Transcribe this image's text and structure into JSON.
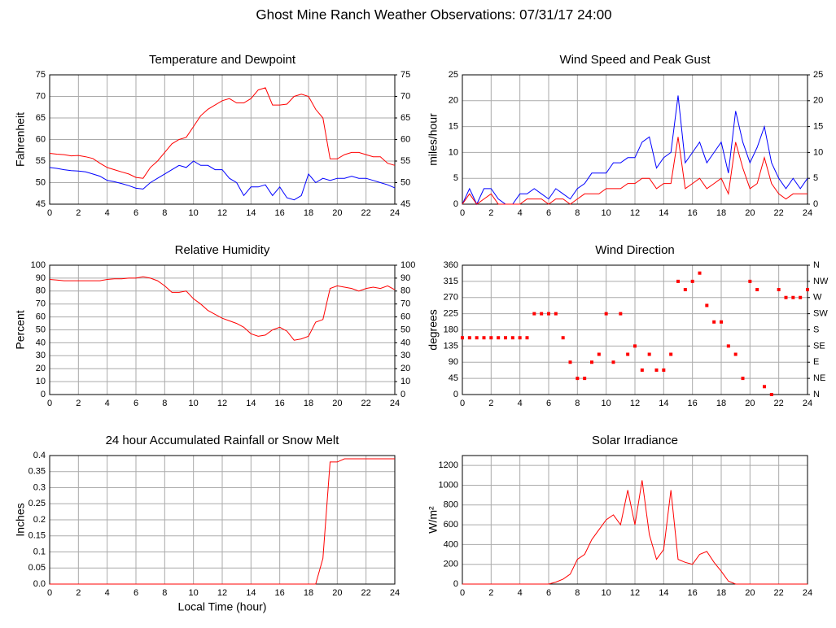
{
  "title": "Ghost Mine Ranch Weather Observations: 07/31/17 24:00",
  "chart_data": [
    {
      "type": "line",
      "title": "Temperature and Dewpoint",
      "ylabel": "Fahrenheit",
      "x": [
        0,
        0.5,
        1,
        1.5,
        2,
        2.5,
        3,
        3.5,
        4,
        4.5,
        5,
        5.5,
        6,
        6.5,
        7,
        7.5,
        8,
        8.5,
        9,
        9.5,
        10,
        10.5,
        11,
        11.5,
        12,
        12.5,
        13,
        13.5,
        14,
        14.5,
        15,
        15.5,
        16,
        16.5,
        17,
        17.5,
        18,
        18.5,
        19,
        19.5,
        20,
        20.5,
        21,
        21.5,
        22,
        22.5,
        23,
        23.5,
        24
      ],
      "series": [
        {
          "color": "#ff0000",
          "values": [
            56.8,
            56.6,
            56.5,
            56.2,
            56.3,
            56,
            55.6,
            54.5,
            53.5,
            53,
            52.5,
            52,
            51.2,
            51,
            53.5,
            55,
            57,
            59,
            60,
            60.5,
            63,
            65.5,
            67,
            68,
            69,
            69.5,
            68.5,
            68.5,
            69.5,
            71.5,
            72,
            68,
            68,
            68.2,
            70,
            70.5,
            70,
            67,
            65,
            55.5,
            55.5,
            56.5,
            57,
            57,
            56.5,
            56,
            56,
            54.5,
            54
          ]
        },
        {
          "color": "#0000ff",
          "values": [
            53.5,
            53.3,
            53,
            52.8,
            52.7,
            52.5,
            52,
            51.5,
            50.5,
            50.2,
            49.8,
            49.3,
            48.7,
            48.5,
            50,
            51,
            52,
            53,
            54,
            53.5,
            55,
            54,
            54,
            53,
            53,
            51,
            50,
            47,
            49,
            49,
            49.5,
            47,
            49,
            46.5,
            46,
            47,
            52,
            50,
            51,
            50.5,
            51,
            51,
            51.5,
            51,
            51,
            50.5,
            50,
            49.5,
            48.8
          ]
        }
      ],
      "xlim": [
        0,
        24
      ],
      "xticks": [
        0,
        2,
        4,
        6,
        8,
        10,
        12,
        14,
        16,
        18,
        20,
        22,
        24
      ],
      "ylim": [
        45,
        75
      ],
      "yticks": [
        45,
        50,
        55,
        60,
        65,
        70,
        75
      ],
      "y2lim": [
        45,
        75
      ],
      "y2ticks": [
        45,
        50,
        55,
        60,
        65,
        70,
        75
      ],
      "grid": true
    },
    {
      "type": "line",
      "title": "Wind Speed and Peak Gust",
      "ylabel": "miles/hour",
      "x": [
        0,
        0.5,
        1,
        1.5,
        2,
        2.5,
        3,
        3.5,
        4,
        4.5,
        5,
        5.5,
        6,
        6.5,
        7,
        7.5,
        8,
        8.5,
        9,
        9.5,
        10,
        10.5,
        11,
        11.5,
        12,
        12.5,
        13,
        13.5,
        14,
        14.5,
        15,
        15.5,
        16,
        16.5,
        17,
        17.5,
        18,
        18.5,
        19,
        19.5,
        20,
        20.5,
        21,
        21.5,
        22,
        22.5,
        23,
        23.5,
        24
      ],
      "series": [
        {
          "color": "#0000ff",
          "values": [
            0,
            3,
            0,
            3,
            3,
            1,
            0,
            0,
            2,
            2,
            3,
            2,
            1,
            3,
            2,
            1,
            3,
            4,
            6,
            6,
            6,
            8,
            8,
            9,
            9,
            12,
            13,
            7,
            9,
            10,
            21,
            8,
            10,
            12,
            8,
            10,
            12,
            6,
            18,
            12,
            8,
            11,
            15,
            8,
            5,
            3,
            5,
            3,
            5
          ]
        },
        {
          "color": "#ff0000",
          "values": [
            0,
            2,
            0,
            1,
            2,
            0,
            0,
            0,
            0,
            1,
            1,
            1,
            0,
            1,
            1,
            0,
            1,
            2,
            2,
            2,
            3,
            3,
            3,
            4,
            4,
            5,
            5,
            3,
            4,
            4,
            13,
            3,
            4,
            5,
            3,
            4,
            5,
            2,
            12,
            7,
            3,
            4,
            9,
            4,
            2,
            1,
            2,
            2,
            2
          ]
        }
      ],
      "xlim": [
        0,
        24
      ],
      "xticks": [
        0,
        2,
        4,
        6,
        8,
        10,
        12,
        14,
        16,
        18,
        20,
        22,
        24
      ],
      "ylim": [
        0,
        25
      ],
      "yticks": [
        0,
        5,
        10,
        15,
        20,
        25
      ],
      "y2lim": [
        0,
        25
      ],
      "y2ticks": [
        0,
        5,
        10,
        15,
        20,
        25
      ],
      "grid": true
    },
    {
      "type": "line",
      "title": "Relative Humidity",
      "ylabel": "Percent",
      "x": [
        0,
        0.5,
        1,
        1.5,
        2,
        2.5,
        3,
        3.5,
        4,
        4.5,
        5,
        5.5,
        6,
        6.5,
        7,
        7.5,
        8,
        8.5,
        9,
        9.5,
        10,
        10.5,
        11,
        11.5,
        12,
        12.5,
        13,
        13.5,
        14,
        14.5,
        15,
        15.5,
        16,
        16.5,
        17,
        17.5,
        18,
        18.5,
        19,
        19.5,
        20,
        20.5,
        21,
        21.5,
        22,
        22.5,
        23,
        23.5,
        24
      ],
      "series": [
        {
          "color": "#ff0000",
          "values": [
            89,
            88.5,
            88,
            88,
            88,
            88,
            88,
            88,
            89,
            89.5,
            89.5,
            90,
            90,
            91,
            90,
            88,
            84,
            79,
            79,
            80,
            74,
            70,
            65,
            62,
            59,
            57,
            55,
            52,
            47,
            45,
            46,
            50,
            52,
            49,
            42,
            43,
            45,
            56,
            58,
            82,
            84,
            83,
            82,
            80,
            82,
            83,
            82,
            84,
            81
          ]
        }
      ],
      "xlim": [
        0,
        24
      ],
      "xticks": [
        0,
        2,
        4,
        6,
        8,
        10,
        12,
        14,
        16,
        18,
        20,
        22,
        24
      ],
      "ylim": [
        0,
        100
      ],
      "yticks": [
        0,
        10,
        20,
        30,
        40,
        50,
        60,
        70,
        80,
        90,
        100
      ],
      "y2lim": [
        0,
        100
      ],
      "y2ticks": [
        0,
        10,
        20,
        30,
        40,
        50,
        60,
        70,
        80,
        90,
        100
      ],
      "grid": true
    },
    {
      "type": "scatter",
      "title": "Wind Direction",
      "ylabel": "degrees",
      "x": [
        0,
        0.5,
        1,
        1.5,
        2,
        2.5,
        3,
        3.5,
        4,
        4.5,
        5,
        5.5,
        6,
        6.5,
        7,
        7.5,
        8,
        8.5,
        9,
        9.5,
        10,
        10.5,
        11,
        11.5,
        12,
        12.5,
        13,
        13.5,
        14,
        14.5,
        15,
        15.5,
        16,
        16.5,
        17,
        17.5,
        18,
        18.5,
        19,
        19.5,
        20,
        20.5,
        21,
        21.5,
        22,
        22.5,
        23,
        23.5,
        24
      ],
      "series": [
        {
          "color": "#ff0000",
          "values": [
            158,
            158,
            158,
            158,
            158,
            158,
            158,
            158,
            158,
            158,
            225,
            225,
            225,
            225,
            158,
            90,
            45,
            45,
            90,
            112,
            225,
            90,
            225,
            112,
            135,
            68,
            112,
            68,
            68,
            112,
            315,
            292,
            315,
            338,
            248,
            202,
            202,
            135,
            112,
            45,
            315,
            292,
            22,
            0,
            292,
            270,
            270,
            270,
            292
          ]
        }
      ],
      "xlim": [
        0,
        24
      ],
      "xticks": [
        0,
        2,
        4,
        6,
        8,
        10,
        12,
        14,
        16,
        18,
        20,
        22,
        24
      ],
      "ylim": [
        0,
        360
      ],
      "yticks": [
        0,
        45,
        90,
        135,
        180,
        225,
        270,
        315,
        360
      ],
      "y2lim": [
        0,
        360
      ],
      "y2ticks": [
        {
          "value": 0,
          "label": "N"
        },
        {
          "value": 45,
          "label": "NE"
        },
        {
          "value": 90,
          "label": "E"
        },
        {
          "value": 135,
          "label": "SE"
        },
        {
          "value": 180,
          "label": "S"
        },
        {
          "value": 225,
          "label": "SW"
        },
        {
          "value": 270,
          "label": "W"
        },
        {
          "value": 315,
          "label": "NW"
        },
        {
          "value": 360,
          "label": "N"
        }
      ],
      "grid": true
    },
    {
      "type": "line",
      "title": "24 hour Accumulated Rainfall or Snow Melt",
      "ylabel": "Inches",
      "xlabel": "Local Time (hour)",
      "x": [
        0,
        0.5,
        1,
        1.5,
        2,
        2.5,
        3,
        3.5,
        4,
        4.5,
        5,
        5.5,
        6,
        6.5,
        7,
        7.5,
        8,
        8.5,
        9,
        9.5,
        10,
        10.5,
        11,
        11.5,
        12,
        12.5,
        13,
        13.5,
        14,
        14.5,
        15,
        15.5,
        16,
        16.5,
        17,
        17.5,
        18,
        18.5,
        19,
        19.5,
        20,
        20.5,
        21,
        21.5,
        22,
        22.5,
        23,
        23.5,
        24
      ],
      "series": [
        {
          "color": "#ff0000",
          "values": [
            0,
            0,
            0,
            0,
            0,
            0,
            0,
            0,
            0,
            0,
            0,
            0,
            0,
            0,
            0,
            0,
            0,
            0,
            0,
            0,
            0,
            0,
            0,
            0,
            0,
            0,
            0,
            0,
            0,
            0,
            0,
            0,
            0,
            0,
            0,
            0,
            0,
            0,
            0.08,
            0.38,
            0.38,
            0.39,
            0.39,
            0.39,
            0.39,
            0.39,
            0.39,
            0.39,
            0.39
          ]
        }
      ],
      "xlim": [
        0,
        24
      ],
      "xticks": [
        0,
        2,
        4,
        6,
        8,
        10,
        12,
        14,
        16,
        18,
        20,
        22,
        24
      ],
      "ylim": [
        0,
        0.4
      ],
      "yticks": [
        {
          "value": 0,
          "label": "0.0"
        },
        0.05,
        0.1,
        0.15,
        0.2,
        0.25,
        0.3,
        0.35,
        0.4
      ],
      "grid": true
    },
    {
      "type": "line",
      "title": "Solar Irradiance",
      "ylabel": "W/m²",
      "x": [
        0,
        0.5,
        1,
        1.5,
        2,
        2.5,
        3,
        3.5,
        4,
        4.5,
        5,
        5.5,
        6,
        6.5,
        7,
        7.5,
        8,
        8.5,
        9,
        9.5,
        10,
        10.5,
        11,
        11.5,
        12,
        12.5,
        13,
        13.5,
        14,
        14.5,
        15,
        15.5,
        16,
        16.5,
        17,
        17.5,
        18,
        18.5,
        19,
        19.5,
        20,
        20.5,
        21,
        21.5,
        22,
        22.5,
        23,
        23.5,
        24
      ],
      "series": [
        {
          "color": "#ff0000",
          "values": [
            0,
            0,
            0,
            0,
            0,
            0,
            0,
            0,
            0,
            0,
            0,
            0,
            0,
            20,
            50,
            100,
            250,
            300,
            450,
            550,
            650,
            700,
            600,
            950,
            600,
            1050,
            500,
            250,
            350,
            950,
            250,
            220,
            200,
            300,
            330,
            220,
            130,
            30,
            0,
            0,
            0,
            0,
            0,
            0,
            0,
            0,
            0,
            0,
            0
          ]
        }
      ],
      "xlim": [
        0,
        24
      ],
      "xticks": [
        0,
        2,
        4,
        6,
        8,
        10,
        12,
        14,
        16,
        18,
        20,
        22,
        24
      ],
      "ylim": [
        0,
        1300
      ],
      "yticks": [
        0,
        200,
        400,
        600,
        800,
        1000,
        1200
      ],
      "grid": true
    }
  ]
}
